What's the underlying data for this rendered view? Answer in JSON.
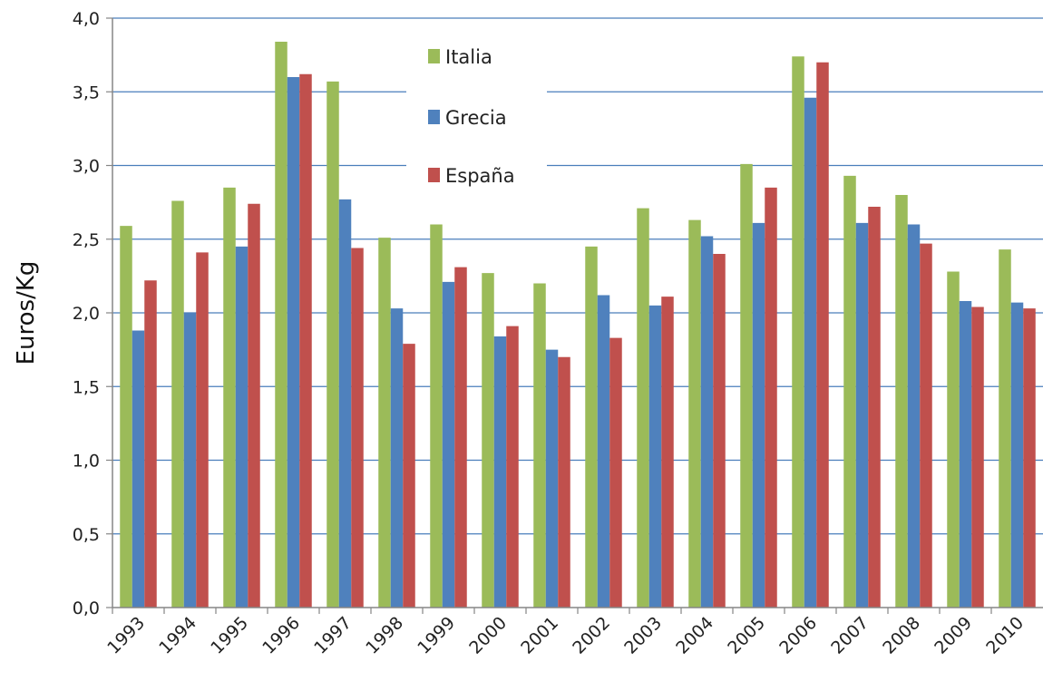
{
  "chart_data": {
    "type": "bar",
    "title": "",
    "xlabel": "",
    "ylabel": "Euros/Kg",
    "ylim": [
      0,
      4
    ],
    "y_ticks": [
      "0,0",
      "0,5",
      "1,0",
      "1,5",
      "2,0",
      "2,5",
      "3,0",
      "3,5",
      "4,0"
    ],
    "grid": "horizontal",
    "legend_position": "top-center",
    "categories": [
      "1993",
      "1994",
      "1995",
      "1996",
      "1997",
      "1998",
      "1999",
      "2000",
      "2001",
      "2002",
      "2003",
      "2004",
      "2005",
      "2006",
      "2007",
      "2008",
      "2009",
      "2010"
    ],
    "series": [
      {
        "name": "Italia",
        "color": "#9BBB59",
        "values": [
          2.59,
          2.76,
          2.85,
          3.84,
          3.57,
          2.51,
          2.6,
          2.27,
          2.2,
          2.45,
          2.71,
          2.63,
          3.01,
          3.74,
          2.93,
          2.8,
          2.28,
          2.43
        ]
      },
      {
        "name": "Grecia",
        "color": "#4F81BD",
        "values": [
          1.88,
          2.0,
          2.45,
          3.6,
          2.77,
          2.03,
          2.21,
          1.84,
          1.75,
          2.12,
          2.05,
          2.52,
          2.61,
          3.46,
          2.61,
          2.6,
          2.08,
          2.07
        ]
      },
      {
        "name": "España",
        "color": "#C0504D",
        "values": [
          2.22,
          2.41,
          2.74,
          3.62,
          2.44,
          1.79,
          2.31,
          1.91,
          1.7,
          1.83,
          2.11,
          2.4,
          2.85,
          3.7,
          2.72,
          2.47,
          2.04,
          2.03
        ]
      }
    ],
    "gridline_color": "#4A7EBB",
    "axis_color": "#868686"
  }
}
